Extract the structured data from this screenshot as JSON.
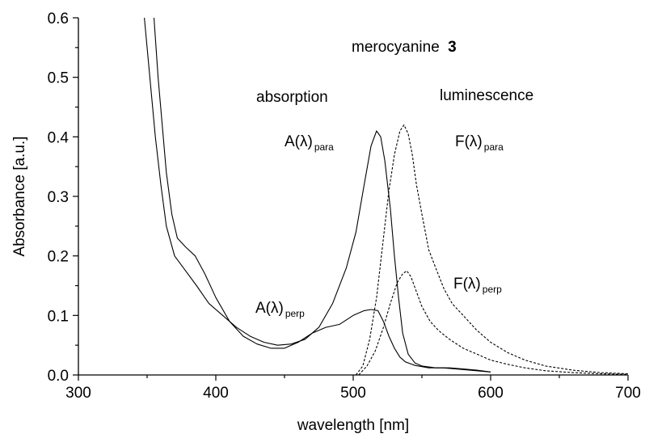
{
  "chart_data": {
    "type": "line",
    "title": "merocyanine",
    "title_bold": "3",
    "xlabel": "wavelength [nm]",
    "ylabel": "Absorbance [a.u.]",
    "xlim": [
      300,
      700
    ],
    "ylim": [
      0,
      0.6
    ],
    "x_ticks": [
      300,
      400,
      500,
      600,
      700
    ],
    "x_tick_labels": [
      "300",
      "400",
      "500",
      "600",
      "700"
    ],
    "y_ticks": [
      0.0,
      0.1,
      0.2,
      0.3,
      0.4,
      0.5,
      0.6
    ],
    "y_tick_labels": [
      "0.0",
      "0.1",
      "0.2",
      "0.3",
      "0.4",
      "0.5",
      "0.6"
    ],
    "grid": false,
    "legend": "none",
    "section_labels": {
      "absorption": "absorption",
      "luminescence": "luminescence"
    },
    "annotations": [
      {
        "key": "a_para",
        "main": "A(λ)",
        "sub": "para"
      },
      {
        "key": "f_para",
        "main": "F(λ)",
        "sub": "para"
      },
      {
        "key": "f_perp",
        "main": "F(λ)",
        "sub": "perp"
      },
      {
        "key": "a_perp",
        "main": "A(λ)",
        "sub": "perp"
      }
    ],
    "series": [
      {
        "key": "a_para",
        "style": "solid",
        "x": [
          348,
          352,
          356,
          360,
          364,
          370,
          378,
          386,
          395,
          405,
          415,
          425,
          435,
          445,
          455,
          465,
          475,
          485,
          495,
          502,
          508,
          513,
          517,
          520,
          523,
          527,
          530,
          533,
          536,
          540,
          545,
          550,
          560,
          570,
          580,
          590,
          600
        ],
        "y": [
          0.6,
          0.5,
          0.4,
          0.32,
          0.25,
          0.2,
          0.175,
          0.15,
          0.12,
          0.1,
          0.08,
          0.065,
          0.055,
          0.05,
          0.052,
          0.06,
          0.08,
          0.12,
          0.18,
          0.24,
          0.32,
          0.385,
          0.41,
          0.4,
          0.36,
          0.28,
          0.2,
          0.13,
          0.07,
          0.035,
          0.02,
          0.015,
          0.012,
          0.012,
          0.01,
          0.008,
          0.005
        ]
      },
      {
        "key": "a_perp",
        "style": "solid",
        "x": [
          355,
          358,
          361,
          364,
          368,
          372,
          378,
          385,
          392,
          400,
          410,
          420,
          430,
          440,
          450,
          460,
          470,
          480,
          490,
          500,
          508,
          513,
          518,
          522,
          526,
          530,
          534,
          538,
          545,
          555,
          565,
          575,
          585,
          600
        ],
        "y": [
          0.6,
          0.5,
          0.42,
          0.34,
          0.27,
          0.23,
          0.215,
          0.2,
          0.17,
          0.13,
          0.09,
          0.065,
          0.052,
          0.045,
          0.045,
          0.055,
          0.07,
          0.08,
          0.085,
          0.1,
          0.108,
          0.11,
          0.108,
          0.09,
          0.065,
          0.045,
          0.03,
          0.022,
          0.016,
          0.012,
          0.012,
          0.01,
          0.008,
          0.005
        ]
      },
      {
        "key": "f_para",
        "style": "dashed",
        "x": [
          502,
          507,
          512,
          517,
          522,
          526,
          530,
          534,
          537,
          540,
          543,
          546,
          550,
          555,
          560,
          566,
          572,
          580,
          590,
          600,
          612,
          625,
          640,
          660,
          680,
          700
        ],
        "y": [
          0.0,
          0.015,
          0.06,
          0.13,
          0.23,
          0.31,
          0.37,
          0.41,
          0.42,
          0.405,
          0.37,
          0.32,
          0.27,
          0.21,
          0.18,
          0.145,
          0.12,
          0.1,
          0.075,
          0.055,
          0.038,
          0.025,
          0.015,
          0.008,
          0.004,
          0.002
        ]
      },
      {
        "key": "f_perp",
        "style": "dashed",
        "x": [
          504,
          510,
          516,
          522,
          527,
          532,
          536,
          539,
          542,
          546,
          550,
          556,
          562,
          570,
          580,
          590,
          600,
          612,
          625,
          640,
          660,
          680,
          700
        ],
        "y": [
          0.0,
          0.015,
          0.04,
          0.08,
          0.12,
          0.155,
          0.17,
          0.175,
          0.165,
          0.14,
          0.115,
          0.09,
          0.075,
          0.06,
          0.045,
          0.035,
          0.025,
          0.018,
          0.012,
          0.007,
          0.004,
          0.002,
          0.001
        ]
      }
    ]
  }
}
